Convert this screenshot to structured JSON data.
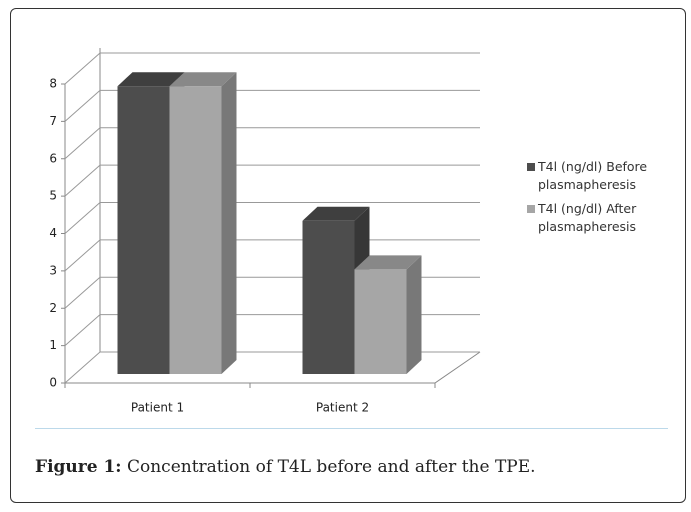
{
  "chart_data": {
    "type": "bar3d",
    "categories": [
      "Patient 1",
      "Patient 2"
    ],
    "series": [
      {
        "name": "T4l (ng/dl) Before plasmapheresis",
        "color": "#4d4d4d",
        "values": [
          7.7,
          4.1
        ]
      },
      {
        "name": "T4l (ng/dl) After plasmapheresis",
        "color": "#a6a6a6",
        "values": [
          7.7,
          2.8
        ]
      }
    ],
    "ylim": [
      0,
      8
    ],
    "yticks": [
      0,
      1,
      2,
      3,
      4,
      5,
      6,
      7,
      8
    ],
    "grid": true,
    "legend": "right"
  },
  "caption": {
    "label": "Figure 1:",
    "text": "Concentration of T4L before and after the TPE."
  }
}
